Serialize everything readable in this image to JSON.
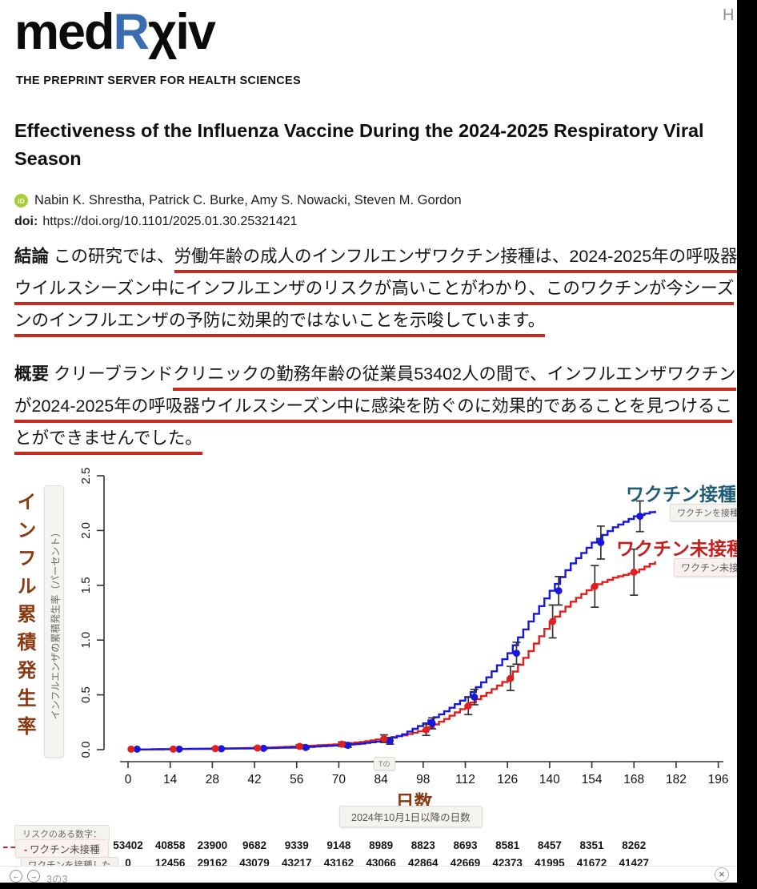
{
  "header": {
    "logo_med": "med",
    "logo_r": "R",
    "logo_chi": "χ",
    "logo_iv": "iv",
    "tagline": "THE PREPRINT SERVER FOR HEALTH SCIENCES",
    "nav_partial": "H",
    "orcid_icon_text": "iD"
  },
  "article": {
    "title": "Effectiveness of the Influenza Vaccine During the 2024-2025 Respiratory Viral Season",
    "authors": "Nabin K. Shrestha, Patrick C. Burke, Amy S. Nowacki, Steven M. Gordon",
    "doi_label": "doi:",
    "doi_value": "https://doi.org/10.1101/2025.01.30.25321421"
  },
  "summary": {
    "conclusion_label": "結論",
    "conclusion_pre": " この研究では、",
    "conclusion_underlined": "労働年齢の成人のインフルエンザワクチン接種は、2024-2025年の呼吸器ウイルスシーズン中にインフルエンザのリスクが高いことがわかり、このワクチンが今シーズンのインフルエンザの予防に効果的ではないことを示唆しています。",
    "overview_label": "概要",
    "overview_pre": " クリーブランド",
    "overview_underlined": "クリニックの勤務年齢の従業員53402人の間で、インフルエンザワクチンが2024-2025年の呼吸器ウイルスシーズン中に感染を防ぐのに効果的であることを見つけることができませんでした。"
  },
  "chart_data": {
    "type": "line",
    "style": "cumulative-incidence step curves with point markers and error bars",
    "x_label_big": "日数",
    "x_label_tooltip": "2024年10月1日以降の日数",
    "y_label_big": "インフル累積発生率",
    "y_label_tooltip": "インフルエンザの累積発生率（パーセント）",
    "t_tooltip": "Tの",
    "xlim": [
      0,
      196
    ],
    "ylim": [
      0,
      2.5
    ],
    "x_ticks": [
      0,
      14,
      28,
      42,
      56,
      70,
      84,
      98,
      112,
      126,
      140,
      154,
      168,
      182,
      196
    ],
    "y_ticks": [
      "0.0",
      "0.5",
      "1.0",
      "1.5",
      "2.0",
      "2.5"
    ],
    "grid": false,
    "series": [
      {
        "name": "ワクチン接種",
        "tooltip_name": "ワクチンを接種した",
        "color": "#1717dd",
        "curve": [
          [
            0,
            0
          ],
          [
            14,
            0.005
          ],
          [
            28,
            0.008
          ],
          [
            42,
            0.012
          ],
          [
            56,
            0.02
          ],
          [
            70,
            0.04
          ],
          [
            77,
            0.055
          ],
          [
            84,
            0.08
          ],
          [
            91,
            0.14
          ],
          [
            98,
            0.24
          ],
          [
            105,
            0.35
          ],
          [
            112,
            0.48
          ],
          [
            119,
            0.66
          ],
          [
            126,
            0.88
          ],
          [
            133,
            1.17
          ],
          [
            140,
            1.45
          ],
          [
            147,
            1.7
          ],
          [
            154,
            1.89
          ],
          [
            161,
            2.03
          ],
          [
            168,
            2.13
          ],
          [
            175,
            2.18
          ]
        ],
        "marker_days": [
          3,
          17,
          31,
          45,
          59,
          73,
          87,
          101,
          115,
          129,
          143,
          157,
          170
        ],
        "marker_values": [
          0.005,
          0.005,
          0.008,
          0.012,
          0.02,
          0.04,
          0.08,
          0.24,
          0.48,
          0.88,
          1.45,
          1.89,
          2.13
        ],
        "marker_errors": [
          0,
          0.003,
          0.005,
          0.008,
          0.012,
          0.018,
          0.03,
          0.05,
          0.07,
          0.1,
          0.13,
          0.15,
          0.14
        ]
      },
      {
        "name": "ワクチン未接種",
        "tooltip_name": "ワクチン未接種",
        "color": "#e02020",
        "curve": [
          [
            0,
            0
          ],
          [
            14,
            0.005
          ],
          [
            28,
            0.01
          ],
          [
            42,
            0.015
          ],
          [
            56,
            0.03
          ],
          [
            63,
            0.04
          ],
          [
            70,
            0.05
          ],
          [
            77,
            0.07
          ],
          [
            84,
            0.1
          ],
          [
            91,
            0.13
          ],
          [
            98,
            0.18
          ],
          [
            105,
            0.28
          ],
          [
            112,
            0.4
          ],
          [
            119,
            0.52
          ],
          [
            126,
            0.65
          ],
          [
            133,
            0.9
          ],
          [
            140,
            1.17
          ],
          [
            147,
            1.35
          ],
          [
            154,
            1.49
          ],
          [
            161,
            1.57
          ],
          [
            168,
            1.62
          ],
          [
            175,
            1.72
          ]
        ],
        "marker_days": [
          1,
          15,
          29,
          43,
          57,
          71,
          85,
          99,
          113,
          127,
          141,
          155,
          168
        ],
        "marker_values": [
          0.005,
          0.005,
          0.01,
          0.015,
          0.03,
          0.05,
          0.1,
          0.18,
          0.4,
          0.65,
          1.17,
          1.49,
          1.62
        ],
        "marker_errors": [
          0,
          0.004,
          0.006,
          0.01,
          0.015,
          0.02,
          0.035,
          0.05,
          0.08,
          0.11,
          0.15,
          0.19,
          0.21
        ]
      }
    ]
  },
  "risk_table": {
    "header": "リスクのある数字：",
    "rows": [
      {
        "label": "ワクチン未接種",
        "marker": "red-dashed-line",
        "values": [
          53402,
          40858,
          23900,
          9682,
          9339,
          9148,
          8989,
          8823,
          8693,
          8581,
          8457,
          8351,
          8262
        ]
      },
      {
        "label": "ワクチンを接種した",
        "marker": "blue-solid-line",
        "values": [
          0,
          12456,
          29162,
          43079,
          43217,
          43162,
          43066,
          42864,
          42669,
          42373,
          41995,
          41672,
          41427
        ]
      }
    ]
  },
  "bottom_bar": {
    "prev": "←",
    "next": "→",
    "page_indicator": "3の3",
    "close": "✕"
  }
}
